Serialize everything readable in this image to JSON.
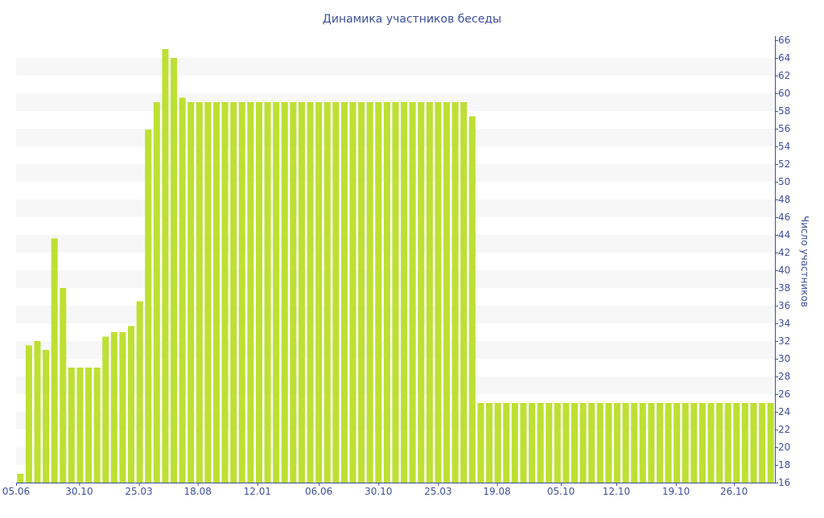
{
  "chart_data": {
    "type": "bar",
    "title": "Динамика участников беседы",
    "xlabel": "",
    "ylabel": "Число участников",
    "ylim": [
      16,
      66
    ],
    "y_ticks": [
      16,
      18,
      20,
      22,
      24,
      26,
      28,
      30,
      32,
      34,
      36,
      38,
      40,
      42,
      44,
      46,
      48,
      50,
      52,
      54,
      56,
      58,
      60,
      62,
      64,
      66
    ],
    "y_axis_side": "right",
    "grid": "alternating horizontal bands",
    "values": [
      17,
      31.5,
      32,
      31,
      43.6,
      38,
      29,
      29,
      29,
      29,
      32.5,
      33,
      33,
      33.7,
      36.5,
      55.9,
      59,
      65,
      64,
      59.5,
      59,
      59,
      59,
      59,
      59,
      59,
      59,
      59,
      59,
      59,
      59,
      59,
      59,
      59,
      59,
      59,
      59,
      59,
      59,
      59,
      59,
      59,
      59,
      59,
      59,
      59,
      59,
      59,
      59,
      59,
      59,
      59,
      59,
      57.4,
      25,
      25,
      25,
      25,
      25,
      25,
      25,
      25,
      25,
      25,
      25,
      25,
      25,
      25,
      25,
      25,
      25,
      25,
      25,
      25,
      25,
      25,
      25,
      25,
      25,
      25,
      25,
      25,
      25,
      25,
      25,
      25,
      25,
      25,
      25
    ],
    "x_ticks": [
      {
        "label": "05.06",
        "bar_index": 0
      },
      {
        "label": "30.10",
        "bar_index": 7.4
      },
      {
        "label": "25.03",
        "bar_index": 14.4
      },
      {
        "label": "18.08",
        "bar_index": 21.3
      },
      {
        "label": "12.01",
        "bar_index": 28.3
      },
      {
        "label": "06.06",
        "bar_index": 35.5
      },
      {
        "label": "30.10",
        "bar_index": 42.5
      },
      {
        "label": "25.03",
        "bar_index": 49.5
      },
      {
        "label": "19.08",
        "bar_index": 56.4
      },
      {
        "label": "05.10",
        "bar_index": 63.9
      },
      {
        "label": "12.10",
        "bar_index": 70.4
      },
      {
        "label": "19.10",
        "bar_index": 77.4
      },
      {
        "label": "26.10",
        "bar_index": 84.2
      }
    ],
    "colors": {
      "bar": "#bde032",
      "text": "#3e4f9e",
      "band": "#f7f7f7",
      "axis": "#3e4f9e"
    }
  }
}
